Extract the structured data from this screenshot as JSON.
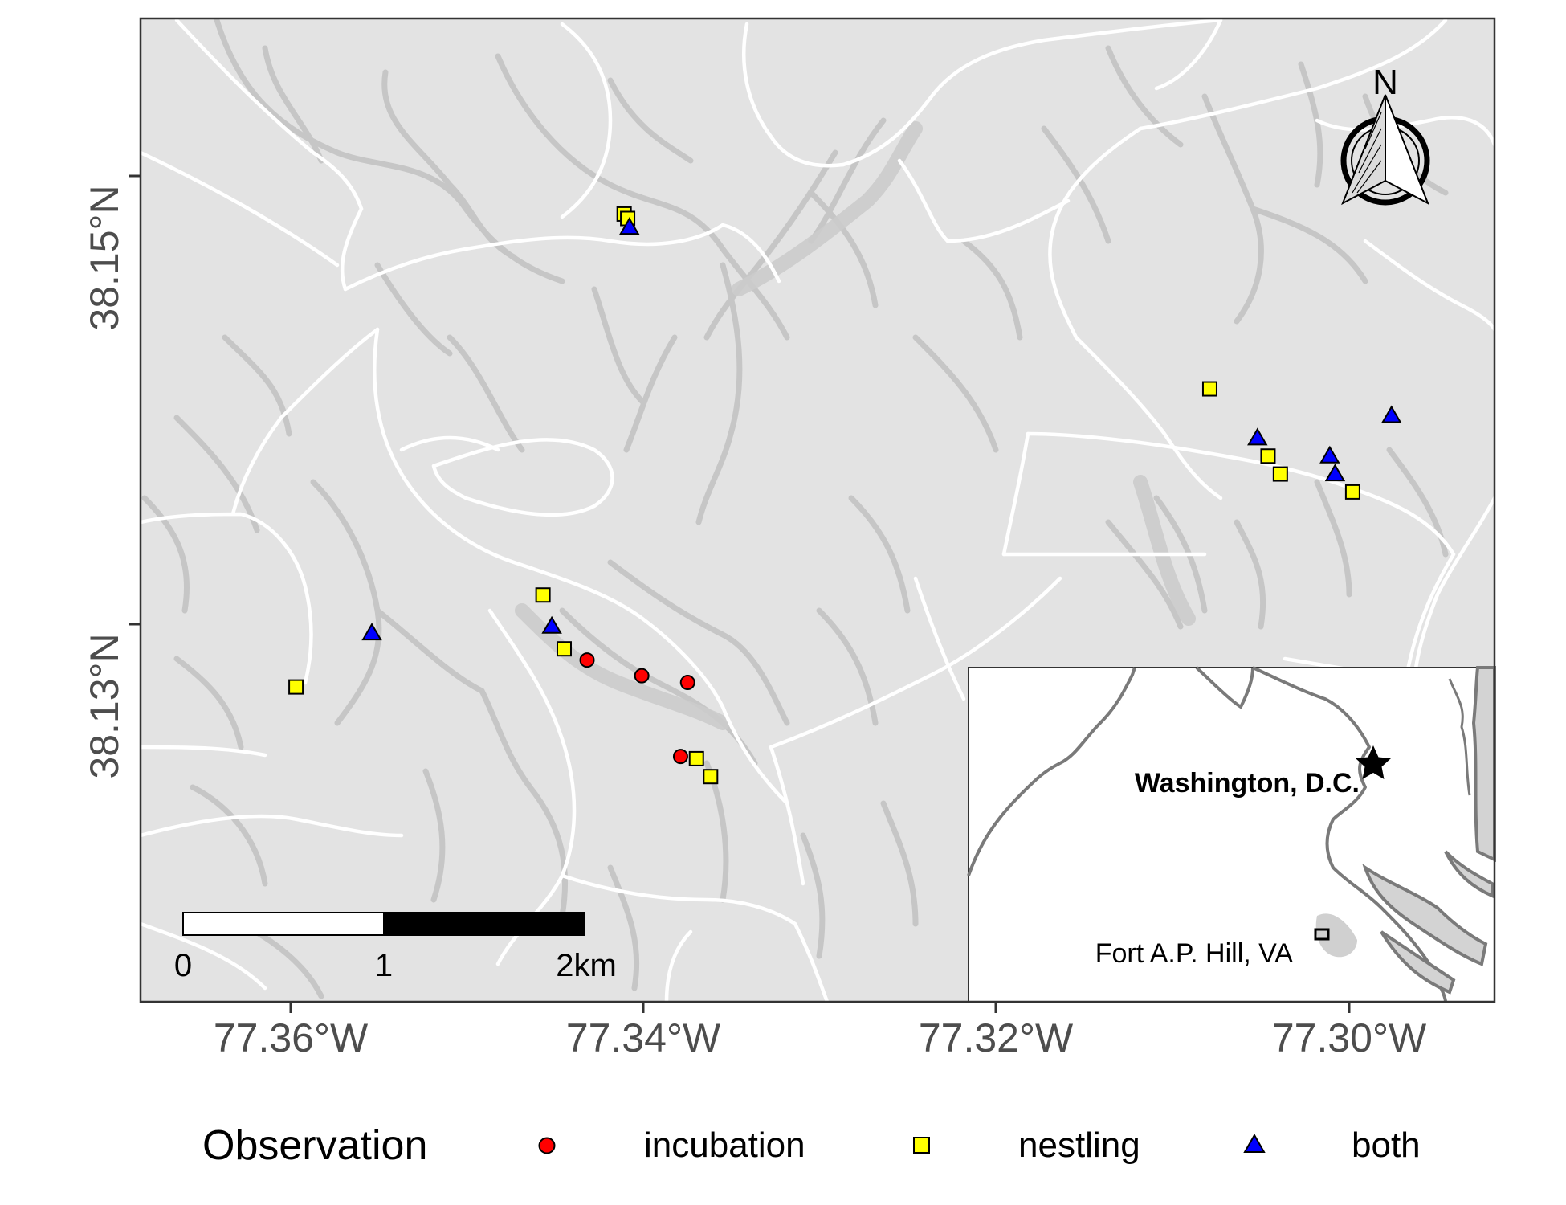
{
  "map": {
    "axes": {
      "x_ticks": [
        "77.36°W",
        "77.34°W",
        "77.32°W",
        "77.30°W"
      ],
      "y_ticks": [
        "38.15°N",
        "38.13°N"
      ]
    },
    "north_arrow": {
      "label": "N",
      "icon": "north-arrow-icon"
    },
    "scale_bar": {
      "labels": [
        "0",
        "1",
        "2km"
      ]
    },
    "inset": {
      "capital_label": "Washington, D.C.",
      "site_label": "Fort A.P. Hill, VA",
      "capital_icon": "star-icon",
      "site_icon": "square-outline-icon"
    },
    "colors": {
      "background": "#e3e3e3",
      "roads": "#ffffff",
      "streams": "#c4c4c4",
      "incubation": "#ff0000",
      "nestling": "#ffff00",
      "both": "#0000ff"
    }
  },
  "legend": {
    "title": "Observation",
    "items": [
      {
        "label": "incubation",
        "shape": "circle",
        "color": "#ff0000"
      },
      {
        "label": "nestling",
        "shape": "square",
        "color": "#ffff00"
      },
      {
        "label": "both",
        "shape": "triangle",
        "color": "#0000ff"
      }
    ]
  },
  "observations": [
    {
      "type": "incubation",
      "lon": -77.3432,
      "lat": 38.1284
    },
    {
      "type": "incubation",
      "lon": -77.3401,
      "lat": 38.1277
    },
    {
      "type": "incubation",
      "lon": -77.3375,
      "lat": 38.1274
    },
    {
      "type": "incubation",
      "lon": -77.3379,
      "lat": 38.1241
    },
    {
      "type": "nestling",
      "lon": -77.3411,
      "lat": 38.1483
    },
    {
      "type": "nestling",
      "lon": -77.3409,
      "lat": 38.1481
    },
    {
      "type": "nestling",
      "lon": -77.3079,
      "lat": 38.1405
    },
    {
      "type": "nestling",
      "lon": -77.3046,
      "lat": 38.1375
    },
    {
      "type": "nestling",
      "lon": -77.3039,
      "lat": 38.1367
    },
    {
      "type": "nestling",
      "lon": -77.2998,
      "lat": 38.1359
    },
    {
      "type": "nestling",
      "lon": -77.3457,
      "lat": 38.1313
    },
    {
      "type": "nestling",
      "lon": -77.3445,
      "lat": 38.1289
    },
    {
      "type": "nestling",
      "lon": -77.3597,
      "lat": 38.1272
    },
    {
      "type": "nestling",
      "lon": -77.337,
      "lat": 38.124
    },
    {
      "type": "nestling",
      "lon": -77.3362,
      "lat": 38.1232
    },
    {
      "type": "both",
      "lon": -77.3408,
      "lat": 38.1477
    },
    {
      "type": "both",
      "lon": -77.2976,
      "lat": 38.1393
    },
    {
      "type": "both",
      "lon": -77.3052,
      "lat": 38.1383
    },
    {
      "type": "both",
      "lon": -77.3011,
      "lat": 38.1375
    },
    {
      "type": "both",
      "lon": -77.3008,
      "lat": 38.1367
    },
    {
      "type": "both",
      "lon": -77.3452,
      "lat": 38.1299
    },
    {
      "type": "both",
      "lon": -77.3554,
      "lat": 38.1296
    }
  ]
}
